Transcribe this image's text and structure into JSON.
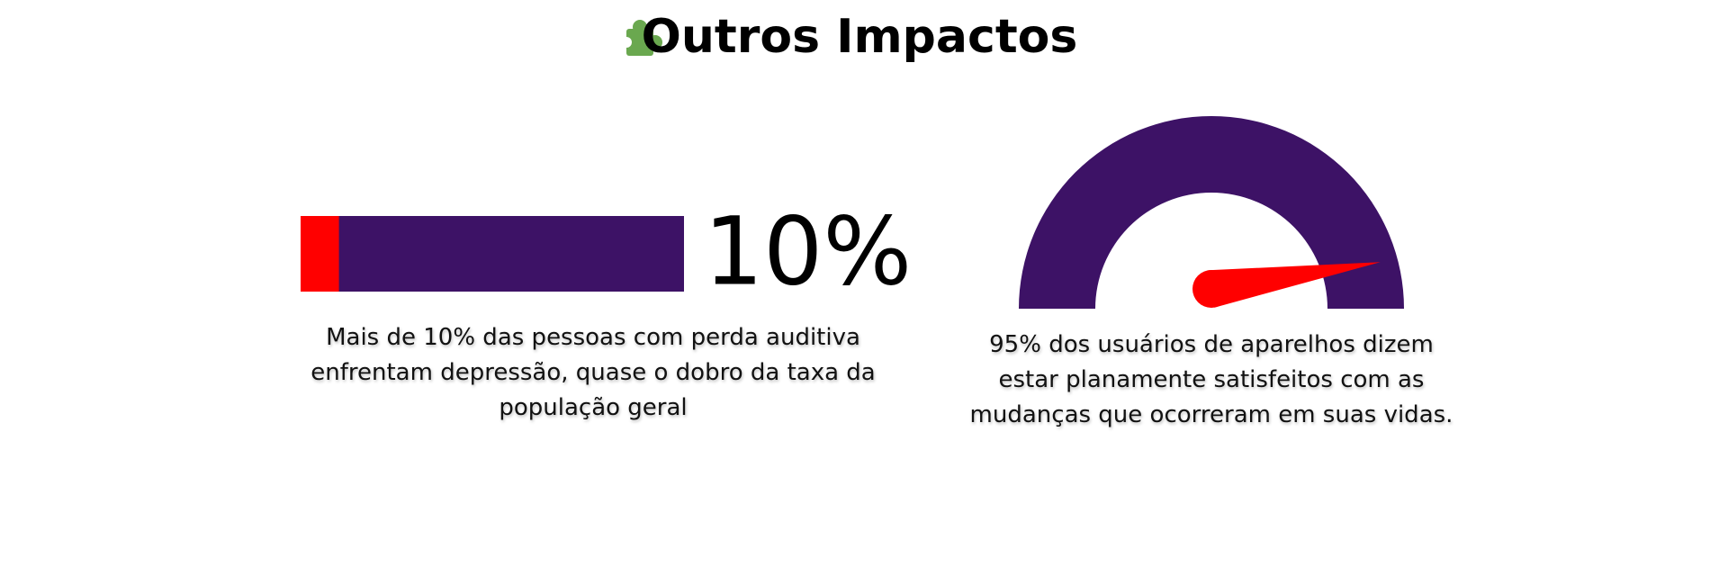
{
  "title": "Outros Impactos",
  "chart_data": [
    {
      "type": "progress",
      "values": [
        10
      ],
      "value_labels": [
        "10%"
      ],
      "ylim": [
        0,
        100
      ],
      "color": "#ff0000",
      "track_color": "#3d1266",
      "caption": "Mais de 10% das pessoas com perda auditiva enfrentam depressão, quase o dobro da taxa da população geral"
    },
    {
      "type": "gauge",
      "values": [
        95
      ],
      "ylim": [
        0,
        100
      ],
      "color": "#ff0000",
      "track_color": "#3d1266",
      "caption": "95% dos usuários de aparelhos dizem estar planamente satisfeitos com as mudanças que ocorreram em suas vidas."
    }
  ]
}
